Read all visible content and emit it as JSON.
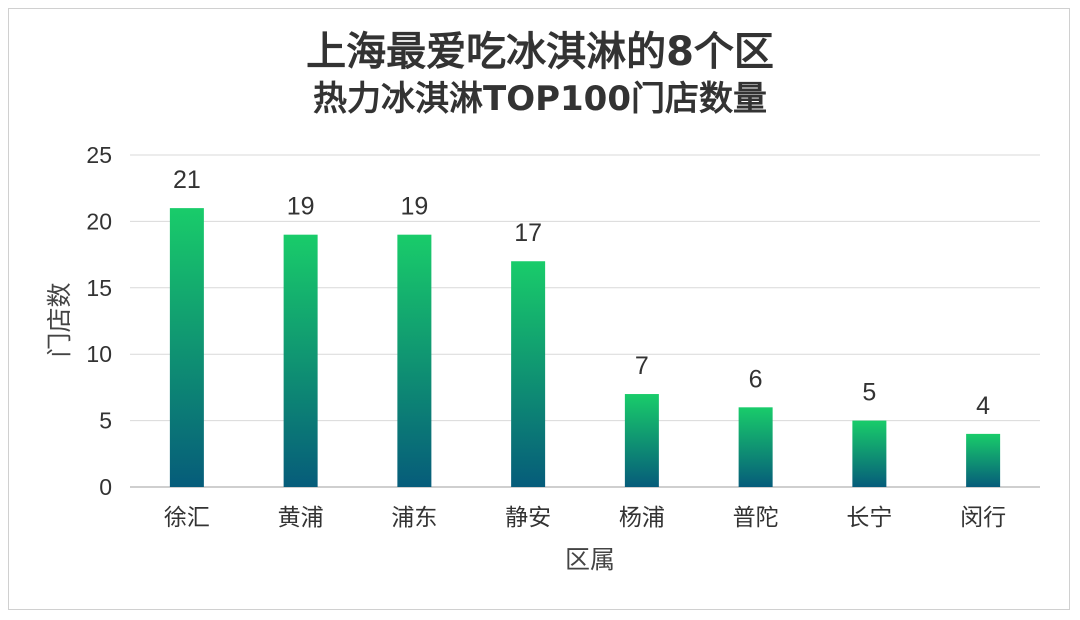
{
  "chart_data": {
    "type": "bar",
    "title": "上海最爱吃冰淇淋的8个区",
    "subtitle": "热力冰淇淋TOP100门店数量",
    "xlabel": "区属",
    "ylabel": "门店数",
    "categories": [
      "徐汇",
      "黄浦",
      "浦东",
      "静安",
      "杨浦",
      "普陀",
      "长宁",
      "闵行"
    ],
    "values": [
      21,
      19,
      19,
      17,
      7,
      6,
      5,
      4
    ],
    "ylim": [
      0,
      25
    ],
    "yticks": [
      "0",
      "5",
      "10",
      "15",
      "20",
      "25"
    ],
    "grid": true,
    "legend": "none",
    "colors": {
      "bar_top": "#19cc6a",
      "bar_bottom": "#065c7a",
      "grid": "#d9d9d9",
      "axis": "#bfbfbf"
    }
  }
}
